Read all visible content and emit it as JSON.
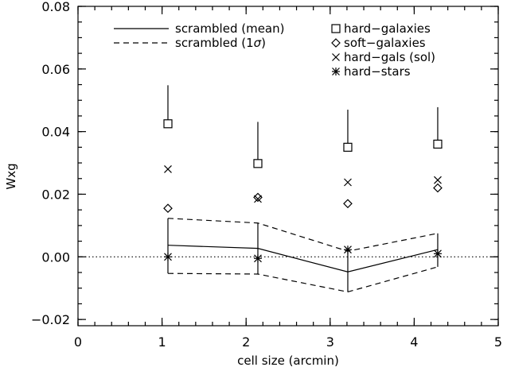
{
  "chart_data": {
    "type": "scatter",
    "title": "",
    "xlabel": "cell size (arcmin)",
    "ylabel": "Wxg",
    "xlim": [
      0,
      5
    ],
    "ylim": [
      -0.022,
      0.08
    ],
    "xticks": [
      0,
      1,
      2,
      3,
      4,
      5
    ],
    "xtick_labels": [
      "0",
      "1",
      "2",
      "3",
      "4",
      "5"
    ],
    "yticks": [
      -0.02,
      0.0,
      0.02,
      0.04,
      0.06,
      0.08
    ],
    "ytick_labels": [
      "−0.02",
      "0.00",
      "0.02",
      "0.04",
      "0.06",
      "0.08"
    ],
    "zero_line": 0,
    "grid": false,
    "legend_left": [
      {
        "label": "scrambled (mean)",
        "style": "solid"
      },
      {
        "label_pre": "scrambled (1",
        "label_sigma": "σ",
        "label_post": ")",
        "style": "dashed"
      }
    ],
    "legend_right": [
      {
        "label": "hard−galaxies",
        "marker": "square"
      },
      {
        "label": "soft−galaxies",
        "marker": "diamond"
      },
      {
        "label": "hard−gals (sol)",
        "marker": "x"
      },
      {
        "label": "hard−stars",
        "marker": "asterisk"
      }
    ],
    "x": [
      1.07,
      2.14,
      3.21,
      4.28
    ],
    "series": [
      {
        "name": "hard−galaxies",
        "marker": "square",
        "values": [
          0.0425,
          0.0298,
          0.035,
          0.036
        ],
        "err": [
          0.0123,
          0.0133,
          0.012,
          0.0118
        ]
      },
      {
        "name": "soft−galaxies",
        "marker": "diamond",
        "values": [
          0.0155,
          0.019,
          0.017,
          0.022
        ]
      },
      {
        "name": "hard−gals (sol)",
        "marker": "x",
        "values": [
          0.028,
          0.0185,
          0.0238,
          0.0245
        ]
      },
      {
        "name": "hard−stars",
        "marker": "asterisk",
        "values": [
          0.0,
          -0.0005,
          0.0023,
          0.001
        ]
      }
    ],
    "scrambled_mean": [
      0.0037,
      0.0027,
      -0.0048,
      0.0023
    ],
    "scrambled_upper": [
      0.0123,
      0.0108,
      0.0018,
      0.0075
    ],
    "scrambled_lower": [
      -0.0053,
      -0.0055,
      -0.0112,
      -0.0032
    ]
  }
}
